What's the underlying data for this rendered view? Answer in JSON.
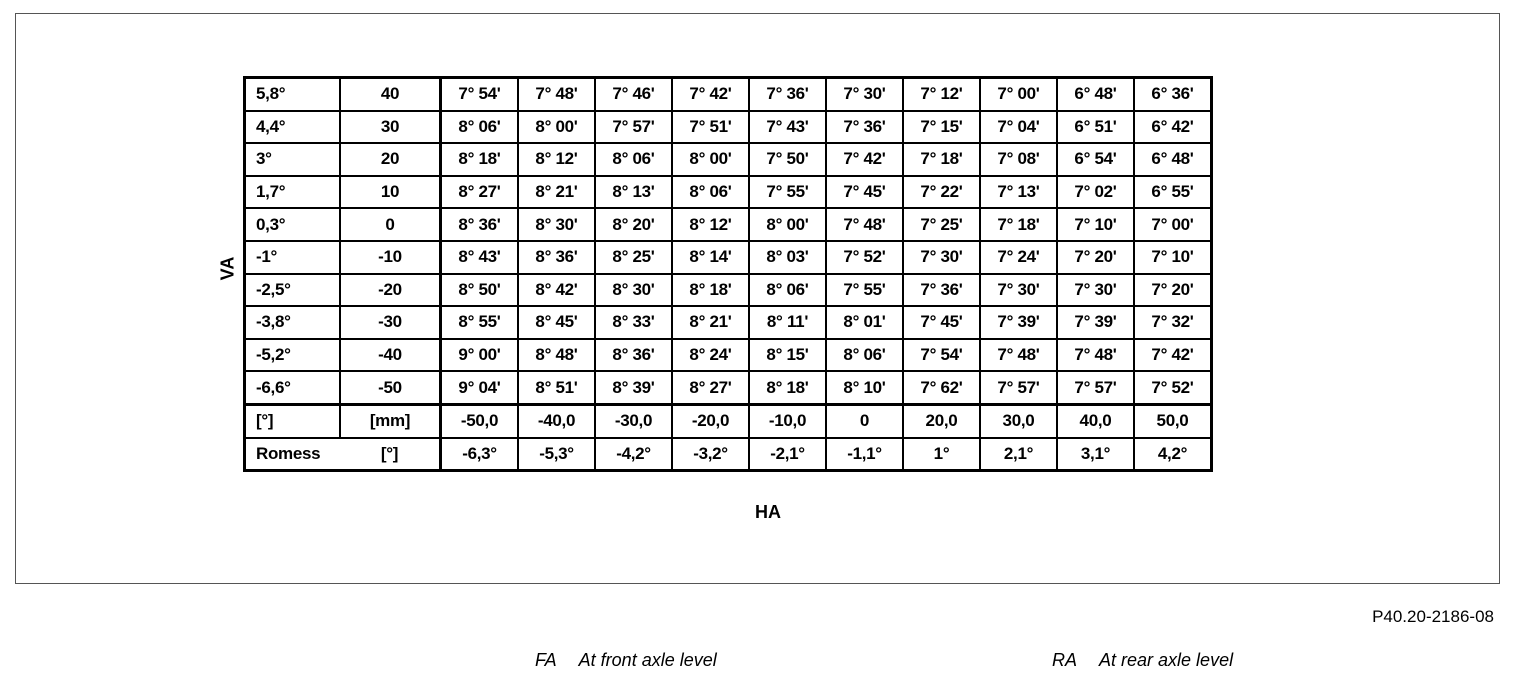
{
  "axis_labels": {
    "vertical": "VA",
    "horizontal": "HA"
  },
  "rows": [
    {
      "deg": "5,8°",
      "mm": "40",
      "values": [
        "7° 54'",
        "7° 48'",
        "7° 46'",
        "7° 42'",
        "7° 36'",
        "7° 30'",
        "7° 12'",
        "7° 00'",
        "6° 48'",
        "6° 36'"
      ]
    },
    {
      "deg": "4,4°",
      "mm": "30",
      "values": [
        "8° 06'",
        "8° 00'",
        "7° 57'",
        "7° 51'",
        "7° 43'",
        "7° 36'",
        "7° 15'",
        "7° 04'",
        "6° 51'",
        "6° 42'"
      ]
    },
    {
      "deg": "3°",
      "mm": "20",
      "values": [
        "8° 18'",
        "8° 12'",
        "8° 06'",
        "8° 00'",
        "7° 50'",
        "7° 42'",
        "7° 18'",
        "7° 08'",
        "6° 54'",
        "6° 48'"
      ]
    },
    {
      "deg": "1,7°",
      "mm": "10",
      "values": [
        "8° 27'",
        "8° 21'",
        "8° 13'",
        "8° 06'",
        "7° 55'",
        "7° 45'",
        "7° 22'",
        "7° 13'",
        "7° 02'",
        "6° 55'"
      ]
    },
    {
      "deg": "0,3°",
      "mm": "0",
      "values": [
        "8° 36'",
        "8° 30'",
        "8° 20'",
        "8° 12'",
        "8° 00'",
        "7° 48'",
        "7° 25'",
        "7° 18'",
        "7° 10'",
        "7° 00'"
      ]
    },
    {
      "deg": "-1°",
      "mm": "-10",
      "values": [
        "8° 43'",
        "8° 36'",
        "8° 25'",
        "8° 14'",
        "8° 03'",
        "7° 52'",
        "7° 30'",
        "7° 24'",
        "7° 20'",
        "7° 10'"
      ]
    },
    {
      "deg": "-2,5°",
      "mm": "-20",
      "values": [
        "8° 50'",
        "8° 42'",
        "8° 30'",
        "8° 18'",
        "8° 06'",
        "7° 55'",
        "7° 36'",
        "7° 30'",
        "7° 30'",
        "7° 20'"
      ]
    },
    {
      "deg": "-3,8°",
      "mm": "-30",
      "values": [
        "8° 55'",
        "8° 45'",
        "8° 33'",
        "8° 21'",
        "8° 11'",
        "8° 01'",
        "7° 45'",
        "7° 39'",
        "7° 39'",
        "7° 32'"
      ]
    },
    {
      "deg": "-5,2°",
      "mm": "-40",
      "values": [
        "9° 00'",
        "8° 48'",
        "8° 36'",
        "8° 24'",
        "8° 15'",
        "8° 06'",
        "7° 54'",
        "7° 48'",
        "7° 48'",
        "7° 42'"
      ]
    },
    {
      "deg": "-6,6°",
      "mm": "-50",
      "values": [
        "9° 04'",
        "8° 51'",
        "8° 39'",
        "8° 27'",
        "8° 18'",
        "8° 10'",
        "7° 62'",
        "7° 57'",
        "7° 57'",
        "7° 52'"
      ]
    }
  ],
  "ha_mm_row": {
    "c0": "[°]",
    "c1": "[mm]",
    "values": [
      "-50,0",
      "-40,0",
      "-30,0",
      "-20,0",
      "-10,0",
      "0",
      "20,0",
      "30,0",
      "40,0",
      "50,0"
    ]
  },
  "ha_deg_row": {
    "c0": "Romess",
    "c1": "[°]",
    "values": [
      "-6,3°",
      "-5,3°",
      "-4,2°",
      "-3,2°",
      "-2,1°",
      "-1,1°",
      "1°",
      "2,1°",
      "3,1°",
      "4,2°"
    ]
  },
  "figure_code": "P40.20-2186-08",
  "legend": [
    {
      "abbr": "FA",
      "text": "At front axle level"
    },
    {
      "abbr": "RA",
      "text": "At rear axle level"
    }
  ]
}
